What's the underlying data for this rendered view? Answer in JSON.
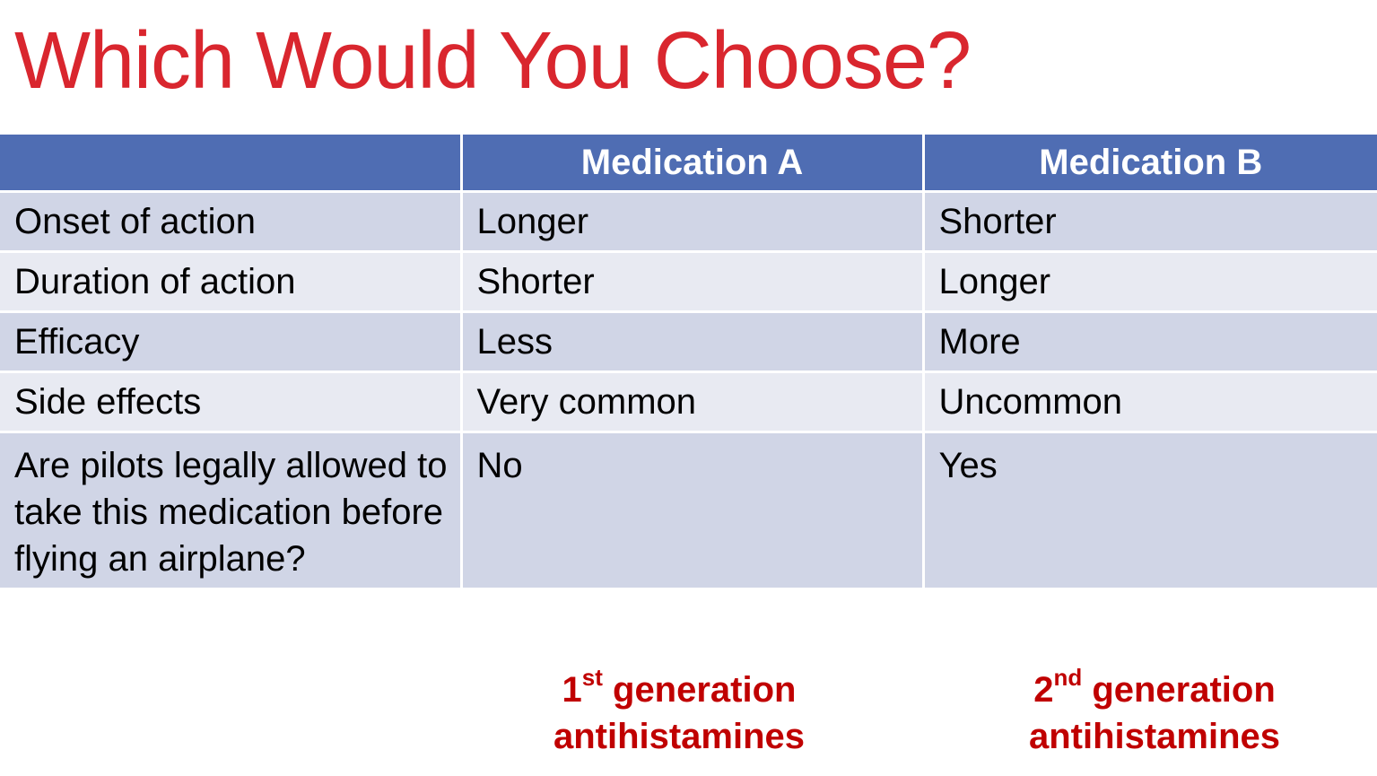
{
  "slide": {
    "title": "Which Would You Choose?"
  },
  "table": {
    "headers": [
      "",
      "Medication A",
      "Medication B"
    ],
    "rows": [
      [
        "Onset of action",
        "Longer",
        "Shorter"
      ],
      [
        "Duration of action",
        "Shorter",
        "Longer"
      ],
      [
        "Efficacy",
        "Less",
        "More"
      ],
      [
        "Side effects",
        "Very common",
        "Uncommon"
      ],
      [
        "Are pilots legally allowed to take this medication before flying an airplane?",
        "No",
        "Yes"
      ]
    ]
  },
  "captions": {
    "a": {
      "ordinal_num": "1",
      "ordinal_suffix": "st",
      "line1_rest": " generation",
      "line2": "antihistamines"
    },
    "b": {
      "ordinal_num": "2",
      "ordinal_suffix": "nd",
      "line1_rest": " generation",
      "line2": "antihistamines"
    }
  },
  "colors": {
    "title": "#d9262e",
    "header_bg": "#4f6db3",
    "row_dark": "#d0d5e6",
    "row_light": "#e8eaf2",
    "caption": "#c00000"
  }
}
